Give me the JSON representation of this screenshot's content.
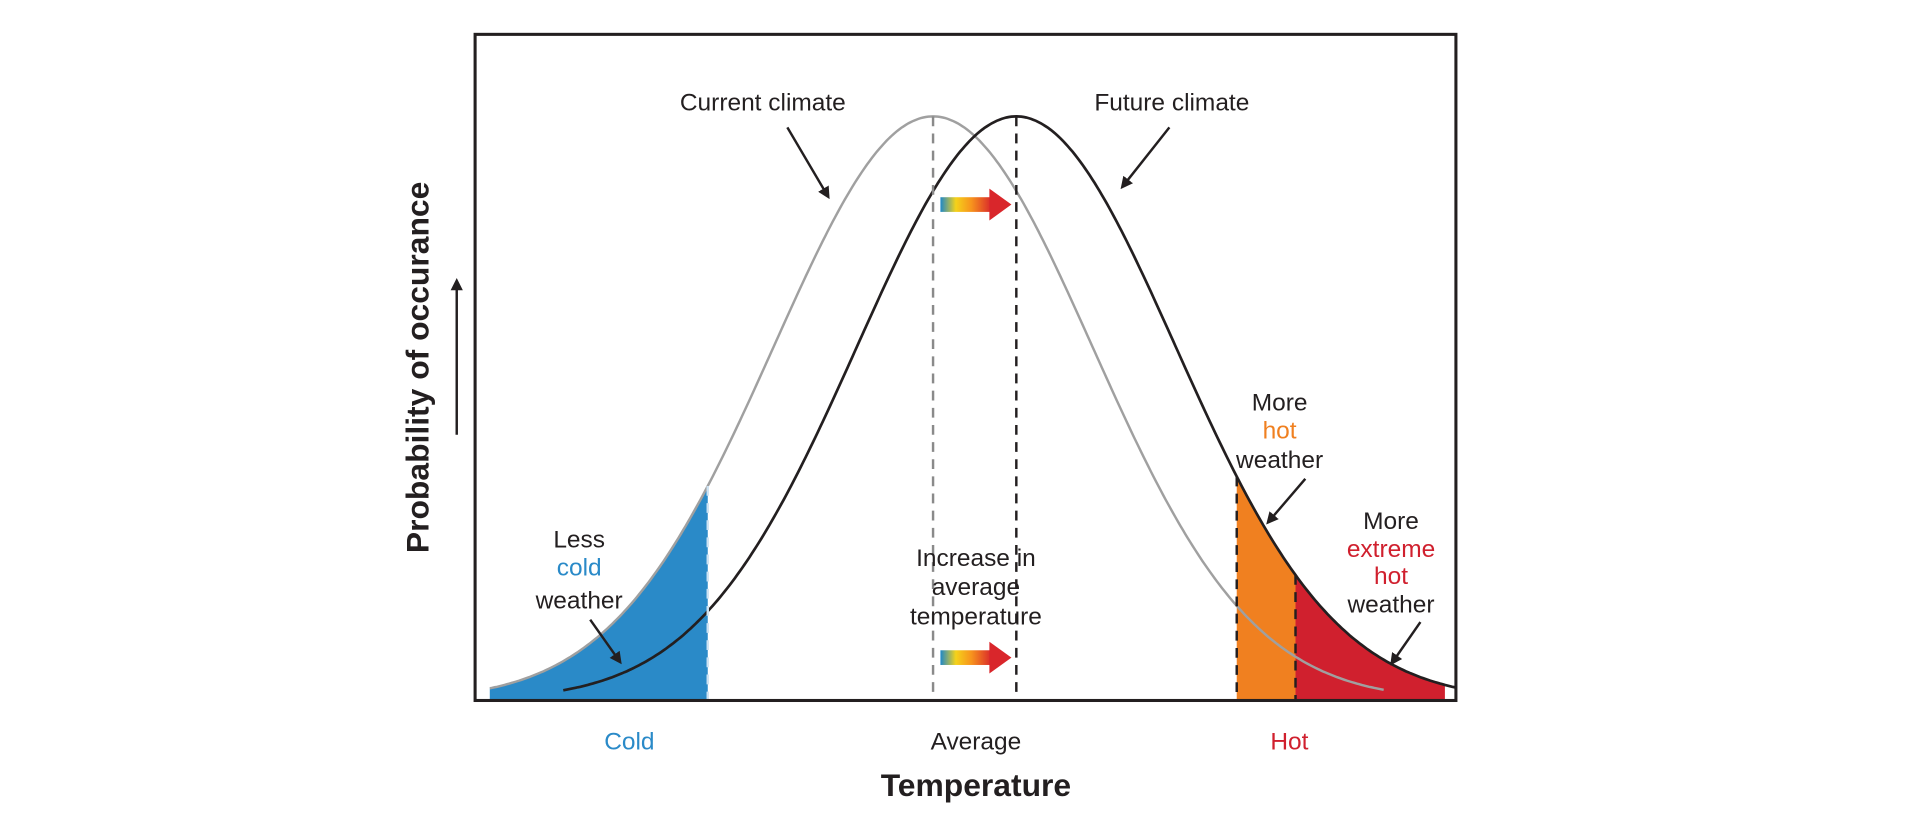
{
  "chart_data": {
    "type": "area",
    "title": "",
    "xlabel": "Temperature",
    "ylabel": "Probability of occurance",
    "x_ticks": [
      "Cold",
      "Average",
      "Hot"
    ],
    "grid": false,
    "series": [
      {
        "name": "Current climate",
        "shape": "normal distribution",
        "color": "#a0a0a0"
      },
      {
        "name": "Future climate",
        "shape": "normal distribution shifted to warmer",
        "color": "#231f20"
      }
    ],
    "annotations": {
      "less_cold": [
        "Less",
        "cold",
        "weather"
      ],
      "increase_avg": [
        "Increase in",
        "average",
        "temperature"
      ],
      "more_hot": [
        "More",
        "hot",
        "weather"
      ],
      "more_extreme_hot": [
        "More",
        "extreme",
        "hot",
        "weather"
      ]
    },
    "colors": {
      "cold": "#2a8ac8",
      "hot": "#f08020",
      "extreme_hot": "#d0202e",
      "text": "#231f20"
    }
  }
}
